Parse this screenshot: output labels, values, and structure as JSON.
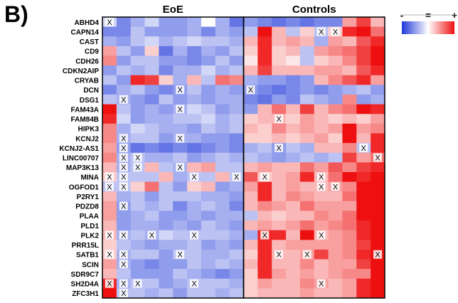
{
  "panel_label": "B)",
  "chart_data": {
    "type": "heatmap",
    "groups": [
      {
        "name": "EoE",
        "columns": 10
      },
      {
        "name": "Controls",
        "columns": 10
      }
    ],
    "rows": [
      "ABHD4",
      "CAPN14",
      "CAST",
      "CD9",
      "CDH26",
      "CDKN2AIP",
      "CRYAB",
      "DCN",
      "DSG1",
      "FAM43A",
      "FAM84B",
      "HIPK3",
      "KCNJ2",
      "KCNJ2-AS1",
      "LINC00707",
      "MAP3K13",
      "MINA",
      "OGFOD1",
      "P2RY1",
      "PDZD8",
      "PLAA",
      "PLD1",
      "PLK2",
      "PRR15L",
      "SATB1",
      "SCIN",
      "SDR9C7",
      "SH2D4A",
      "ZFC3H1"
    ],
    "values": [
      [
        -0.2,
        -0.6,
        -0.4,
        -0.2,
        -0.5,
        -0.5,
        -0.4,
        0,
        -0.4,
        -0.7,
        -0.5,
        -0.6,
        -0.7,
        -0.6,
        -0.7,
        -0.6,
        -0.6,
        0.4,
        0.8,
        0.3
      ],
      [
        -0.6,
        -0.6,
        -0.3,
        -0.5,
        -0.5,
        -0.5,
        -0.4,
        -0.6,
        -0.4,
        -0.5,
        -0.3,
        1.0,
        0.3,
        -0.3,
        0.2,
        -0.3,
        0.2,
        0.9,
        1.0,
        0.6
      ],
      [
        -0.4,
        -0.5,
        -0.3,
        -0.2,
        -0.4,
        -0.3,
        -0.2,
        -0.3,
        -0.3,
        -0.4,
        0.3,
        0.9,
        0.3,
        0.4,
        0.3,
        -0.4,
        0.4,
        0.3,
        0.7,
        0.9
      ],
      [
        0.4,
        -0.3,
        -0.5,
        0.2,
        -0.7,
        -0.4,
        -0.6,
        -0.4,
        -0.5,
        -0.3,
        0.2,
        0.9,
        0.2,
        0.3,
        -0.3,
        0.4,
        0.5,
        0.6,
        0.8,
        1.0
      ],
      [
        0.5,
        -0.5,
        -0.3,
        -0.3,
        -0.5,
        -0.5,
        -0.6,
        -0.5,
        -0.3,
        -0.5,
        0.1,
        0.9,
        0.2,
        0.1,
        -0.3,
        0.2,
        0.3,
        0.5,
        0.8,
        1.0
      ],
      [
        -0.5,
        -0.3,
        -0.4,
        -0.3,
        -0.6,
        -0.4,
        -0.4,
        -0.2,
        -0.4,
        -0.3,
        0.3,
        0.8,
        0.3,
        0.3,
        0.3,
        0.4,
        0.4,
        0.3,
        0.7,
        0.9
      ],
      [
        -0.3,
        -0.5,
        0.9,
        0.8,
        0.2,
        -0.4,
        0.3,
        -0.3,
        0.6,
        0.5,
        -0.4,
        -0.5,
        -0.5,
        -0.6,
        -0.5,
        0.3,
        0.5,
        0.7,
        0.9,
        0.4
      ],
      [
        -0.6,
        -0.4,
        -0.3,
        -0.5,
        -0.6,
        -0.5,
        -0.3,
        -0.5,
        -0.4,
        -0.5,
        -0.5,
        -0.6,
        -0.7,
        -0.6,
        -0.5,
        -0.6,
        -0.5,
        -0.4,
        -0.3,
        -0.5
      ],
      [
        -0.3,
        -0.4,
        -0.5,
        -0.6,
        -0.3,
        -0.5,
        -0.4,
        -0.5,
        -0.4,
        -0.4,
        -0.6,
        -0.7,
        -0.5,
        -0.6,
        -0.3,
        -0.4,
        -0.5,
        0.5,
        -0.5,
        -0.4
      ],
      [
        1.0,
        -0.3,
        -0.5,
        -0.4,
        -0.5,
        -0.4,
        -0.2,
        -0.3,
        -0.5,
        -0.4,
        -0.5,
        0.3,
        0.6,
        0.3,
        0.8,
        0.3,
        0.5,
        0.6,
        1.0,
        0.9
      ],
      [
        0.9,
        -0.2,
        -0.5,
        -0.4,
        -0.4,
        -0.3,
        -0.3,
        -0.2,
        -0.4,
        -0.3,
        0.2,
        0.3,
        0.3,
        0.2,
        0.4,
        0.3,
        0.2,
        0.3,
        0.2,
        0.4
      ],
      [
        0.5,
        -0.4,
        -0.2,
        -0.3,
        -0.4,
        -0.4,
        -0.5,
        -0.3,
        -0.4,
        -0.3,
        0.3,
        0.2,
        0.5,
        0.3,
        0.4,
        0.3,
        0.4,
        1.0,
        0.4,
        0.5
      ],
      [
        0.5,
        -0.4,
        -0.3,
        -0.3,
        -0.5,
        -0.4,
        -0.4,
        -0.5,
        -0.5,
        -0.6,
        0.2,
        0.2,
        0.3,
        0.2,
        0.3,
        0.4,
        0.2,
        1.0,
        0.3,
        0.9
      ],
      [
        0.4,
        -0.5,
        -0.7,
        -0.6,
        -0.7,
        -0.6,
        -0.7,
        -0.6,
        -0.5,
        -0.6,
        -0.4,
        -0.3,
        -0.5,
        -0.3,
        -0.4,
        0.3,
        0.3,
        0.5,
        -0.3,
        0.9
      ],
      [
        0.5,
        -0.4,
        -0.3,
        -0.4,
        -0.4,
        -0.3,
        -0.5,
        -0.4,
        -0.3,
        -0.4,
        -0.3,
        -0.4,
        -0.5,
        -0.4,
        -0.3,
        -0.4,
        -0.3,
        0.8,
        0.4,
        0.6
      ],
      [
        0.3,
        -0.4,
        -0.3,
        0.3,
        -0.3,
        -0.4,
        0.3,
        0.4,
        -0.3,
        -0.3,
        0.3,
        0.4,
        0.3,
        0.3,
        0.6,
        0.4,
        0.7,
        0.5,
        0.8,
        0.9
      ],
      [
        0.2,
        -0.3,
        -0.3,
        -0.3,
        0.3,
        -0.4,
        -0.3,
        -0.3,
        0.3,
        -0.3,
        0.7,
        0.2,
        0.3,
        0.4,
        0.9,
        0.3,
        0.6,
        1.0,
        0.9,
        1.0
      ],
      [
        -0.3,
        -0.3,
        0.2,
        0.6,
        -0.3,
        -0.5,
        0.2,
        0.3,
        -0.5,
        -0.4,
        0.4,
        0.9,
        0.3,
        0.4,
        0.3,
        0.3,
        0.4,
        0.5,
        1.0,
        1.0
      ],
      [
        0.3,
        -0.4,
        -0.3,
        -0.5,
        -0.3,
        -0.3,
        -0.3,
        -0.4,
        -0.4,
        -0.5,
        0.3,
        0.9,
        0.3,
        0.5,
        0.4,
        0.3,
        0.3,
        0.6,
        1.0,
        1.0
      ],
      [
        0.4,
        -0.5,
        -0.3,
        -0.4,
        -0.3,
        -0.6,
        -0.4,
        -0.3,
        -0.4,
        -0.6,
        0.3,
        0.5,
        0.4,
        0.3,
        0.6,
        0.4,
        0.4,
        0.4,
        1.0,
        1.0
      ],
      [
        0.4,
        -0.5,
        -0.4,
        -0.3,
        -0.5,
        -0.5,
        -0.4,
        -0.5,
        -0.4,
        -0.4,
        -0.3,
        0.3,
        0.2,
        0.3,
        0.3,
        0.5,
        0.4,
        0.6,
        1.0,
        1.0
      ],
      [
        0.3,
        -0.5,
        -0.4,
        -0.4,
        -0.5,
        -0.4,
        -0.5,
        -0.3,
        -0.4,
        -0.5,
        0.3,
        0.4,
        0.3,
        0.4,
        0.6,
        0.4,
        0.5,
        0.6,
        0.9,
        1.0
      ],
      [
        0.3,
        -0.4,
        -0.3,
        -0.4,
        -0.2,
        -0.3,
        -0.3,
        -0.3,
        -0.3,
        -0.4,
        -0.4,
        0.9,
        0.9,
        0.3,
        1.0,
        0.3,
        0.4,
        0.5,
        0.9,
        1.0
      ],
      [
        0.2,
        -0.3,
        -0.4,
        -0.5,
        -0.4,
        -0.4,
        -0.3,
        -0.5,
        -0.4,
        -0.5,
        0.3,
        0.9,
        0.3,
        0.4,
        0.4,
        0.4,
        0.4,
        0.5,
        0.8,
        1.0
      ],
      [
        0.2,
        -0.4,
        -0.3,
        -0.3,
        -0.5,
        -0.3,
        -0.3,
        -0.4,
        -0.4,
        -0.3,
        0.2,
        0.9,
        0.3,
        0.3,
        0.4,
        0.8,
        0.4,
        0.5,
        0.9,
        1.0
      ],
      [
        0.4,
        -0.4,
        -0.5,
        -0.6,
        -0.5,
        -0.5,
        -0.3,
        -0.4,
        -0.3,
        -0.4,
        0.3,
        0.9,
        0.3,
        0.3,
        0.5,
        0.3,
        0.4,
        0.4,
        0.8,
        1.0
      ],
      [
        0.3,
        -0.3,
        -0.5,
        -0.5,
        -0.5,
        -0.3,
        -0.4,
        -0.5,
        -0.6,
        -0.5,
        0.2,
        0.9,
        0.4,
        0.3,
        0.4,
        0.3,
        0.4,
        0.5,
        0.5,
        1.0
      ],
      [
        0.9,
        -0.4,
        -0.3,
        -0.3,
        -0.5,
        -0.4,
        -0.3,
        -0.3,
        -0.3,
        -0.4,
        0.2,
        0.4,
        0.3,
        0.3,
        0.5,
        0.4,
        0.3,
        0.4,
        0.9,
        1.0
      ],
      [
        1.0,
        -0.3,
        -0.3,
        -0.4,
        -0.3,
        -0.5,
        -0.3,
        -0.3,
        -0.4,
        -0.3,
        0.2,
        0.3,
        0.3,
        0.3,
        0.4,
        0.3,
        0.3,
        0.4,
        0.9,
        1.0
      ]
    ],
    "marker": "X",
    "marked_cells": [
      [
        0,
        0
      ],
      [
        1,
        15
      ],
      [
        1,
        16
      ],
      [
        7,
        5
      ],
      [
        7,
        10
      ],
      [
        8,
        1
      ],
      [
        9,
        5
      ],
      [
        10,
        12
      ],
      [
        12,
        1
      ],
      [
        12,
        5
      ],
      [
        13,
        1
      ],
      [
        13,
        12
      ],
      [
        13,
        18
      ],
      [
        14,
        1
      ],
      [
        14,
        2
      ],
      [
        14,
        19
      ],
      [
        15,
        1
      ],
      [
        15,
        2
      ],
      [
        15,
        5
      ],
      [
        16,
        0
      ],
      [
        16,
        1
      ],
      [
        16,
        6
      ],
      [
        16,
        9
      ],
      [
        16,
        11
      ],
      [
        16,
        15
      ],
      [
        17,
        0
      ],
      [
        17,
        1
      ],
      [
        17,
        15
      ],
      [
        17,
        16
      ],
      [
        19,
        1
      ],
      [
        22,
        0
      ],
      [
        22,
        1
      ],
      [
        22,
        3
      ],
      [
        22,
        6
      ],
      [
        22,
        11
      ],
      [
        22,
        15
      ],
      [
        24,
        0
      ],
      [
        24,
        1
      ],
      [
        24,
        5
      ],
      [
        24,
        12
      ],
      [
        24,
        14
      ],
      [
        24,
        19
      ],
      [
        25,
        1
      ],
      [
        27,
        0
      ],
      [
        27,
        1
      ],
      [
        27,
        2
      ],
      [
        27,
        6
      ],
      [
        27,
        15
      ],
      [
        28,
        1
      ]
    ],
    "legend": {
      "symbols": [
        "-",
        "=",
        "+"
      ],
      "placement": "top-right"
    },
    "colors": {
      "low": "#2038d8",
      "mid": "#ffffff",
      "high": "#ee1010"
    },
    "value_range": [
      -1,
      1
    ]
  }
}
